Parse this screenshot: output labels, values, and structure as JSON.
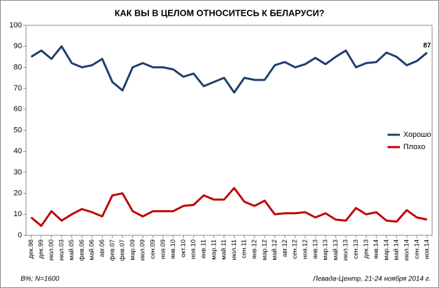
{
  "chart_data": {
    "type": "line",
    "title": "КАК ВЫ В ЦЕЛОМ ОТНОСИТЕСЬ К БЕЛАРУСИ?",
    "categories": [
      "дек.98",
      "дек.99",
      "июл.00",
      "июл.03",
      "май.05",
      "фев.06",
      "май.06",
      "авг.06",
      "фев.07",
      "фев.07",
      "мар.09",
      "июл.09",
      "сен.09",
      "ноя.09",
      "янв.10",
      "окт.10",
      "ноя.10",
      "янв.11",
      "мар.11",
      "май.11",
      "июл.11",
      "сен.11",
      "янв.12",
      "мар.12",
      "май.12",
      "авг.12",
      "сен.12",
      "ноя.12",
      "янв.13",
      "мар.13",
      "май.13",
      "июл.13",
      "сен.13",
      "дек.13",
      "янв.14",
      "мар.14",
      "май.14",
      "июл.14",
      "сен.14",
      "ноя.14"
    ],
    "series": [
      {
        "name": "Хорошо",
        "color": "#1f3d6e",
        "values": [
          85,
          88,
          84,
          90,
          82,
          80,
          81,
          84,
          73,
          69,
          80,
          82,
          80,
          80,
          79,
          75.5,
          77,
          71,
          73,
          75,
          68,
          75,
          74,
          74,
          81,
          82.5,
          80,
          81.5,
          84.5,
          81.5,
          85,
          88,
          80,
          82,
          82.5,
          87,
          85,
          81,
          83,
          87
        ]
      },
      {
        "name": "Плохо",
        "color": "#c00000",
        "values": [
          8.5,
          4.5,
          11.5,
          7,
          10,
          12.5,
          11,
          9,
          19,
          20,
          11.5,
          9,
          11.5,
          11.5,
          11.5,
          14,
          14.5,
          19,
          17,
          17,
          22.5,
          16,
          14,
          16.5,
          10,
          10.5,
          10.5,
          11,
          8.5,
          10.5,
          7.5,
          7,
          13,
          10,
          11,
          7,
          6.5,
          12,
          8.5,
          7.5
        ]
      }
    ],
    "ylim": [
      0,
      100
    ],
    "yticks": [
      0,
      10,
      20,
      30,
      40,
      50,
      60,
      70,
      80,
      90,
      100
    ],
    "grid": false,
    "legend": "right",
    "footnote_left": "В%; N=1600",
    "footnote_right": "Левада-Центр, 21-24 ноября 2014 г."
  }
}
